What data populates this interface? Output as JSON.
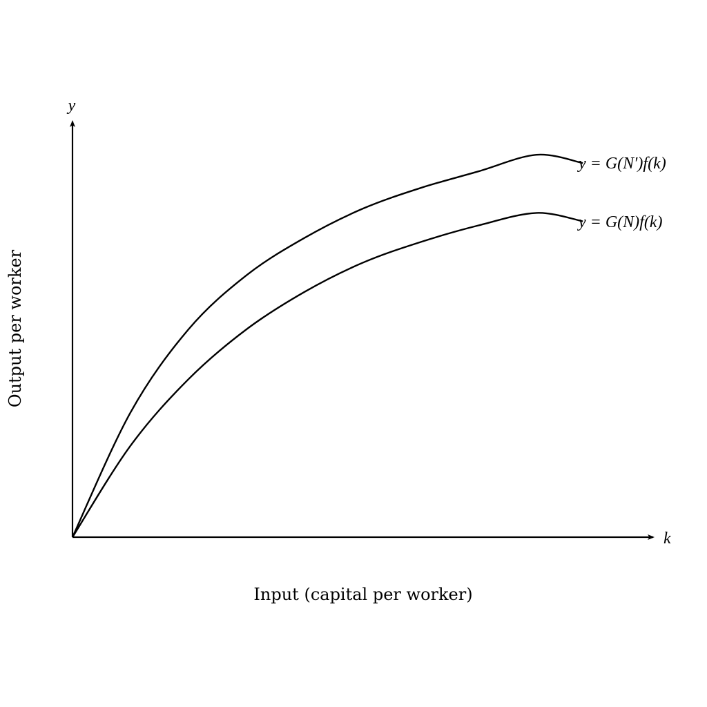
{
  "chart_data": {
    "type": "line",
    "title": "",
    "xlabel": "Input (capital per worker)",
    "ylabel": "Output per worker",
    "x_axis_symbol": "k",
    "y_axis_symbol": "y",
    "xlim": [
      0,
      1
    ],
    "ylim": [
      0,
      1
    ],
    "grid": false,
    "legend": "none",
    "series": [
      {
        "name": "y = G(N′)f(k)",
        "x": [
          0,
          0.1,
          0.2,
          0.3,
          0.4,
          0.5,
          0.6,
          0.7,
          0.8,
          0.88
        ],
        "y": [
          0,
          0.3,
          0.5,
          0.63,
          0.72,
          0.79,
          0.84,
          0.88,
          0.92,
          0.9
        ]
      },
      {
        "name": "y = G(N)f(k)",
        "x": [
          0,
          0.1,
          0.2,
          0.3,
          0.4,
          0.5,
          0.6,
          0.7,
          0.8,
          0.88
        ],
        "y": [
          0,
          0.22,
          0.38,
          0.5,
          0.59,
          0.66,
          0.71,
          0.75,
          0.78,
          0.76
        ]
      }
    ],
    "colors": {
      "axis": "#000000",
      "curve": "#000000",
      "text": "#000000"
    }
  }
}
